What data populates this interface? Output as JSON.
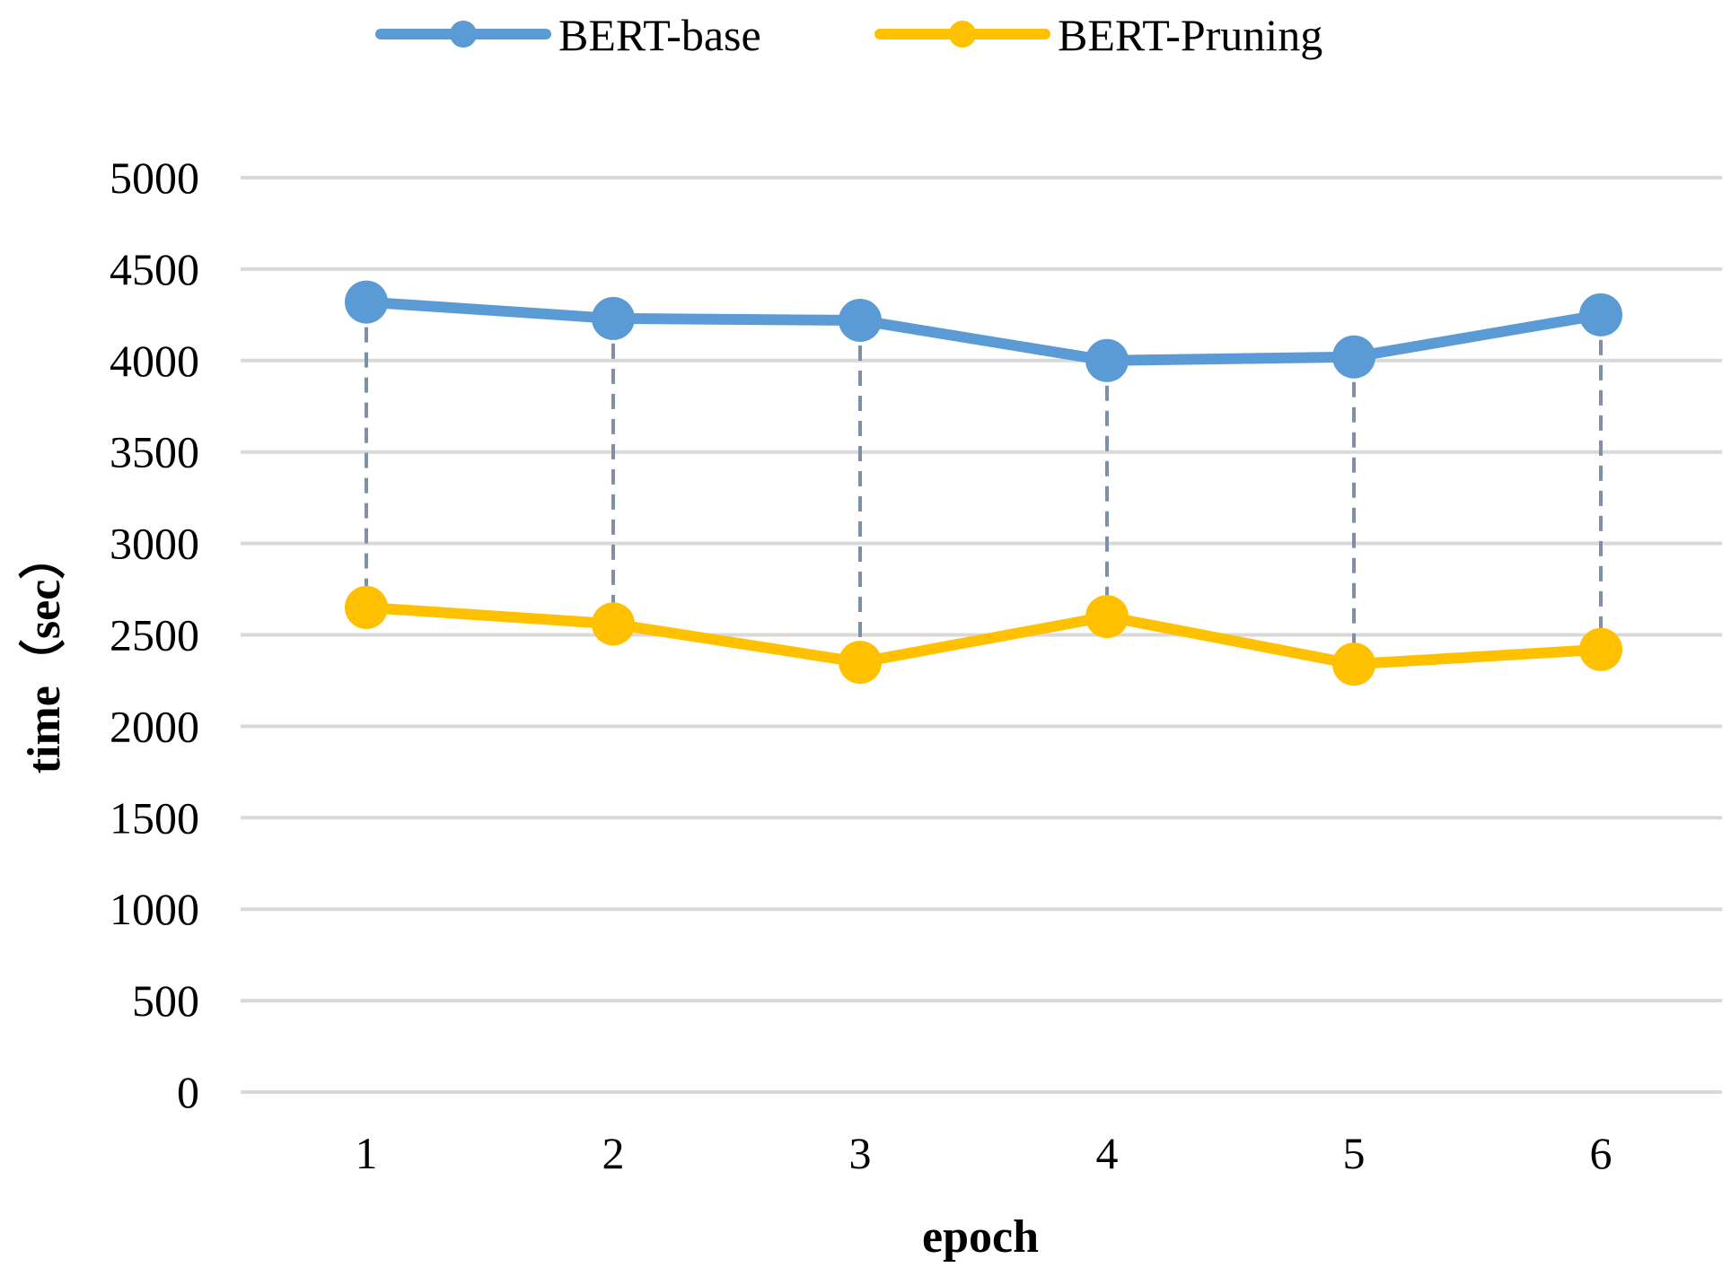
{
  "chart_data": {
    "type": "line",
    "x": [
      1,
      2,
      3,
      4,
      5,
      6
    ],
    "tick_labels_x": [
      "1",
      "2",
      "3",
      "4",
      "5",
      "6"
    ],
    "ylim": [
      0,
      5000
    ],
    "yticks": [
      0,
      500,
      1000,
      1500,
      2000,
      2500,
      3000,
      3500,
      4000,
      4500,
      5000
    ],
    "tick_labels_y": [
      "0",
      "500",
      "1000",
      "1500",
      "2000",
      "2500",
      "3000",
      "3500",
      "4000",
      "4500",
      "5000"
    ],
    "xlabel": "epoch",
    "ylabel": "time（sec）",
    "grid": "horizontal",
    "legend_position": "top-center",
    "drop_lines": true,
    "series": [
      {
        "name": "BERT-base",
        "color": "#5b9bd5",
        "values": [
          4320,
          4230,
          4220,
          4000,
          4020,
          4250
        ]
      },
      {
        "name": "BERT-Pruning",
        "color": "#ffc000",
        "values": [
          2650,
          2560,
          2350,
          2600,
          2340,
          2420
        ]
      }
    ],
    "colors": {
      "grid": "#d9d9d9",
      "drop_line": "#7f8fa6"
    }
  }
}
